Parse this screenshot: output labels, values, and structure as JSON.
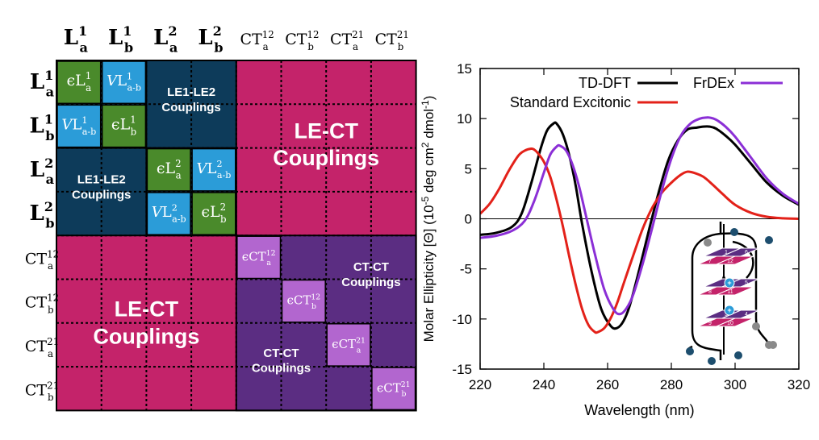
{
  "colors": {
    "le_ct": "#c4236a",
    "le_le": "#0d3b5a",
    "le_diag": "#4a8a2b",
    "le_vcoup": "#2b9cd8",
    "ct_ct": "#5b2d82",
    "ct_diag": "#b266cf",
    "grid_line": "#000000",
    "td_dft": "#000000",
    "standard_excitonic": "#e32119",
    "frdex": "#8b2fd6",
    "dna_pink": "#c4236a",
    "dna_purple": "#5b2d82",
    "ion_blue": "#2b9cd8",
    "node_blue": "#1d4e6e",
    "node_gray": "#8a8a8a"
  },
  "matrix": {
    "column_headers": [
      {
        "base": "L",
        "sup": "1",
        "sub": "a"
      },
      {
        "base": "L",
        "sup": "1",
        "sub": "b"
      },
      {
        "base": "L",
        "sup": "2",
        "sub": "a"
      },
      {
        "base": "L",
        "sup": "2",
        "sub": "b"
      },
      {
        "base": "CT",
        "sup": "12",
        "sub": "a"
      },
      {
        "base": "CT",
        "sup": "12",
        "sub": "b"
      },
      {
        "base": "CT",
        "sup": "21",
        "sub": "a"
      },
      {
        "base": "CT",
        "sup": "21",
        "sub": "b"
      }
    ],
    "row_headers": [
      {
        "base": "L",
        "sup": "1",
        "sub": "a"
      },
      {
        "base": "L",
        "sup": "1",
        "sub": "b"
      },
      {
        "base": "L",
        "sup": "2",
        "sub": "a"
      },
      {
        "base": "L",
        "sup": "2",
        "sub": "b"
      },
      {
        "base": "CT",
        "sup": "12",
        "sub": "a"
      },
      {
        "base": "CT",
        "sup": "12",
        "sub": "b"
      },
      {
        "base": "CT",
        "sup": "21",
        "sub": "a"
      },
      {
        "base": "CT",
        "sup": "21",
        "sub": "b"
      }
    ],
    "energy_symbol": "ϵ",
    "coupling_symbol": "V",
    "energy_cells": [
      {
        "row": 0,
        "col": 0,
        "base": "L",
        "sup": "1",
        "sub": "a"
      },
      {
        "row": 1,
        "col": 1,
        "base": "L",
        "sup": "1",
        "sub": "b"
      },
      {
        "row": 2,
        "col": 2,
        "base": "L",
        "sup": "2",
        "sub": "a"
      },
      {
        "row": 3,
        "col": 3,
        "base": "L",
        "sup": "2",
        "sub": "b"
      },
      {
        "row": 4,
        "col": 4,
        "base": "CT",
        "sup": "12",
        "sub": "a"
      },
      {
        "row": 5,
        "col": 5,
        "base": "CT",
        "sup": "12",
        "sub": "b"
      },
      {
        "row": 6,
        "col": 6,
        "base": "CT",
        "sup": "21",
        "sub": "a"
      },
      {
        "row": 7,
        "col": 7,
        "base": "CT",
        "sup": "21",
        "sub": "b"
      }
    ],
    "coupling_cells": [
      {
        "row": 0,
        "col": 1,
        "base": "L",
        "sup": "1",
        "sub": "a-b"
      },
      {
        "row": 1,
        "col": 0,
        "base": "L",
        "sup": "1",
        "sub": "a-b"
      },
      {
        "row": 2,
        "col": 3,
        "base": "L",
        "sup": "2",
        "sub": "a-b"
      },
      {
        "row": 3,
        "col": 2,
        "base": "L",
        "sup": "2",
        "sub": "a-b"
      }
    ],
    "block_labels": {
      "le1_le2_top": [
        "LE1-LE2",
        "Couplings"
      ],
      "le1_le2_bottom": [
        "LE1-LE2",
        "Couplings"
      ],
      "le_ct_top": [
        "LE-CT",
        "Couplings"
      ],
      "le_ct_bottom": [
        "LE-CT",
        "Couplings"
      ],
      "ct_ct_top": [
        "CT-CT",
        "Couplings"
      ],
      "ct_ct_bottom": [
        "CT-CT",
        "Couplings"
      ]
    }
  },
  "chart_data": {
    "type": "line",
    "xlabel": "Wavelength (nm)",
    "ylabel_parts": {
      "main": "Molar Ellipticity [Θ] (10",
      "exp1": "-5",
      "mid": " deg cm",
      "exp2": "2",
      "mid2": " dmol",
      "exp3": "-1",
      "end": ")"
    },
    "xlim": [
      220,
      320
    ],
    "ylim": [
      -15,
      15
    ],
    "xticks": [
      220,
      240,
      260,
      280,
      300,
      320
    ],
    "yticks": [
      -15,
      -10,
      -5,
      0,
      5,
      10,
      15
    ],
    "zero_line": true,
    "grid": false,
    "legend_position": "top",
    "series": [
      {
        "name": "TD-DFT",
        "color": "#000000",
        "x": [
          220,
          225,
          230,
          233,
          236,
          239,
          241,
          243,
          244,
          246,
          248,
          250,
          252,
          255,
          258,
          261,
          263,
          265,
          267,
          270,
          273,
          276,
          279,
          282,
          285,
          288,
          290,
          292,
          294,
          297,
          300,
          305,
          310,
          315,
          320
        ],
        "y": [
          -1.6,
          -1.4,
          -0.8,
          0.5,
          3.5,
          7.0,
          8.8,
          9.5,
          9.5,
          8.4,
          6.3,
          3.3,
          -0.5,
          -5.3,
          -9.0,
          -10.7,
          -10.9,
          -10.2,
          -8.6,
          -5.0,
          -1.1,
          2.6,
          5.8,
          7.8,
          8.9,
          9.1,
          9.2,
          9.2,
          9.0,
          8.3,
          7.4,
          5.5,
          3.6,
          2.3,
          1.4
        ]
      },
      {
        "name": "Standard Excitonic",
        "color": "#e32119",
        "x": [
          220,
          223,
          226,
          229,
          232,
          234,
          236,
          237,
          238,
          240,
          242,
          244,
          246,
          248,
          250,
          252,
          254,
          256,
          257,
          259,
          261,
          263,
          265,
          268,
          271,
          274,
          277,
          280,
          283,
          285,
          287,
          290,
          293,
          296,
          300,
          305,
          310,
          315,
          320
        ],
        "y": [
          0.5,
          1.5,
          3.0,
          4.8,
          6.3,
          6.8,
          7.0,
          6.9,
          6.6,
          5.7,
          4.2,
          1.9,
          -0.8,
          -3.8,
          -6.6,
          -9.0,
          -10.6,
          -11.3,
          -11.3,
          -10.9,
          -9.9,
          -8.4,
          -6.5,
          -3.7,
          -1.0,
          1.1,
          2.6,
          3.6,
          4.4,
          4.7,
          4.6,
          4.2,
          3.4,
          2.5,
          1.4,
          0.6,
          0.2,
          0.05,
          0.0
        ]
      },
      {
        "name": "FrDEx",
        "color": "#8b2fd6",
        "x": [
          220,
          225,
          230,
          234,
          237,
          240,
          242,
          244,
          245,
          247,
          249,
          251,
          253,
          256,
          259,
          262,
          264,
          266,
          268,
          271,
          274,
          277,
          280,
          283,
          286,
          289,
          291,
          292,
          294,
          297,
          300,
          305,
          310,
          315,
          320
        ],
        "y": [
          -1.9,
          -1.7,
          -1.2,
          -0.2,
          1.8,
          4.6,
          6.4,
          7.2,
          7.3,
          6.8,
          5.4,
          3.3,
          0.6,
          -3.5,
          -7.1,
          -9.1,
          -9.5,
          -8.9,
          -7.6,
          -4.5,
          -0.9,
          2.8,
          6.0,
          8.3,
          9.5,
          10.0,
          10.1,
          10.1,
          9.9,
          9.2,
          8.2,
          6.1,
          4.0,
          2.5,
          1.5
        ]
      }
    ]
  },
  "dna_inset": {
    "strand_numbers": [
      "1",
      "6",
      "7",
      "12",
      "2",
      "5",
      "8",
      "11",
      "3",
      "4",
      "9",
      "10"
    ],
    "ion_labels": [
      "+",
      "+"
    ]
  }
}
